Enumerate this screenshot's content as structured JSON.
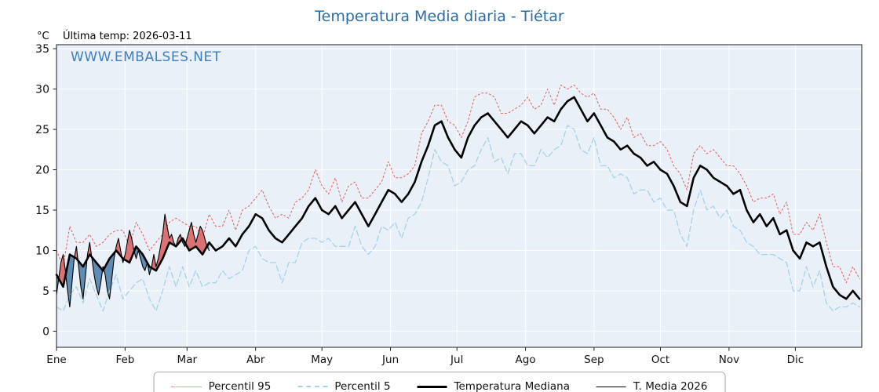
{
  "title": "Temperatura Media diaria - Tiétar",
  "y_axis_unit": "°C",
  "last_temp_label": "Última temp: 2026-03-11",
  "watermark": "WWW.EMBALSES.NET",
  "colors": {
    "title": "#2c6ca6",
    "watermark": "#3f7dc0",
    "p95": "#e05c5c",
    "p5": "#a6d1e6",
    "median": "#000000",
    "t2026": "#000000",
    "fill_above": "#d96464",
    "fill_below": "#4f81ab",
    "plot_bg": "#eaf0f8",
    "grid": "#ffffff",
    "frame": "#1a1a1a",
    "tick_label": "#111111"
  },
  "chart_data": {
    "type": "line",
    "title": "Temperatura Media diaria - Tiétar",
    "xlabel": "",
    "ylabel": "°C",
    "x_unit": "day_of_year",
    "xlim": [
      1,
      365
    ],
    "ylim": [
      -2,
      35.5
    ],
    "grid": true,
    "legend_position": "bottom",
    "y_ticks": [
      0,
      5,
      10,
      15,
      20,
      25,
      30,
      35
    ],
    "month_labels": [
      "Ene",
      "Feb",
      "Mar",
      "Abr",
      "May",
      "Jun",
      "Jul",
      "Ago",
      "Sep",
      "Oct",
      "Nov",
      "Dic"
    ],
    "month_start_days": [
      1,
      32,
      60,
      91,
      121,
      152,
      182,
      213,
      244,
      274,
      305,
      335
    ],
    "climatology_x": [
      1,
      4,
      7,
      10,
      13,
      16,
      19,
      22,
      25,
      28,
      31,
      34,
      37,
      40,
      43,
      46,
      49,
      52,
      55,
      58,
      61,
      64,
      67,
      70,
      73,
      76,
      79,
      82,
      85,
      88,
      91,
      94,
      97,
      100,
      103,
      106,
      109,
      112,
      115,
      118,
      121,
      124,
      127,
      130,
      133,
      136,
      139,
      142,
      145,
      148,
      151,
      154,
      157,
      160,
      163,
      166,
      169,
      172,
      175,
      178,
      181,
      184,
      187,
      190,
      193,
      196,
      199,
      202,
      205,
      208,
      211,
      214,
      217,
      220,
      223,
      226,
      229,
      232,
      235,
      238,
      241,
      244,
      247,
      250,
      253,
      256,
      259,
      262,
      265,
      268,
      271,
      274,
      277,
      280,
      283,
      286,
      289,
      292,
      295,
      298,
      301,
      304,
      307,
      310,
      313,
      316,
      319,
      322,
      325,
      328,
      331,
      334,
      337,
      340,
      343,
      346,
      349,
      352,
      355,
      358,
      361,
      364
    ],
    "series": [
      {
        "name": "Percentil 95",
        "style": "dotted",
        "color": "#e05c5c",
        "values": [
          10,
          8,
          13,
          11,
          11,
          12,
          10.5,
          11,
          12,
          12.5,
          12.5,
          10.5,
          13.5,
          12,
          10,
          11,
          12,
          13.5,
          14,
          13.5,
          13,
          13,
          11.5,
          14.5,
          13,
          13,
          15,
          12.5,
          15,
          15.5,
          16.5,
          17.5,
          15.5,
          14,
          14.5,
          14,
          16,
          16.5,
          17.5,
          20,
          18,
          17,
          19,
          16,
          18,
          18.5,
          16.5,
          16.5,
          17.5,
          18.5,
          21,
          19,
          19,
          19.5,
          20.5,
          24.5,
          26,
          28,
          28,
          26,
          25.5,
          24,
          26,
          29,
          29.5,
          29.5,
          29,
          27,
          27,
          27.5,
          28,
          29,
          27.5,
          28,
          30,
          28,
          30.5,
          30,
          30.5,
          29.5,
          29,
          29.5,
          27.5,
          27.5,
          26.5,
          25,
          26.5,
          24,
          24.5,
          23,
          23,
          23.5,
          22.5,
          20.5,
          19.5,
          17.5,
          22,
          23,
          22,
          22.5,
          21.5,
          20.5,
          20.5,
          19.5,
          18,
          16,
          16.5,
          16.5,
          17,
          14.5,
          16,
          12,
          12,
          13.5,
          12.5,
          14.5,
          11,
          8,
          8,
          6,
          8,
          6.5
        ]
      },
      {
        "name": "Percentil 5",
        "style": "dashed",
        "color": "#a6d1e6",
        "values": [
          3,
          2.5,
          4.5,
          5.5,
          3.5,
          6.5,
          4.5,
          2.5,
          5,
          7,
          4,
          5,
          6,
          6.5,
          4,
          2.5,
          5,
          8,
          5.5,
          8,
          5.5,
          7.5,
          5.5,
          6,
          6,
          7.5,
          6.5,
          7,
          7.5,
          10,
          10.5,
          9,
          8.5,
          8.5,
          6,
          8.5,
          8.5,
          11,
          11.5,
          11.5,
          11,
          11.5,
          10.5,
          10.5,
          10.5,
          13,
          10.5,
          9.5,
          10.5,
          13,
          12.5,
          13.5,
          11.5,
          14,
          14.5,
          16,
          19,
          22.5,
          21,
          20.5,
          18,
          18.5,
          20,
          20.5,
          22.5,
          24,
          21,
          21.5,
          19.5,
          22,
          22,
          20.5,
          20.5,
          22.5,
          21.5,
          22.5,
          23,
          25.5,
          25,
          22.5,
          22,
          24,
          20.5,
          20.5,
          19,
          19.5,
          19,
          17,
          17.5,
          17.5,
          16,
          16.5,
          15,
          15,
          12,
          10.5,
          15,
          17.5,
          15,
          15.5,
          14,
          15,
          13,
          12.5,
          11,
          10.5,
          9.5,
          9.5,
          9.5,
          9,
          8.5,
          5,
          5,
          8,
          5.5,
          7.5,
          3.5,
          2.5,
          3,
          3,
          3.5,
          3
        ]
      },
      {
        "name": "Temperatura Mediana",
        "style": "solid-thick",
        "color": "#000000",
        "values": [
          7,
          5.5,
          9.5,
          9,
          8,
          9.5,
          8.5,
          7.5,
          9,
          10,
          9,
          8.5,
          10.5,
          9.5,
          8,
          7.5,
          9,
          11,
          10.5,
          11.5,
          10,
          10.5,
          9.5,
          11,
          10,
          10.5,
          11.5,
          10.5,
          12,
          13,
          14.5,
          14,
          12.5,
          11.5,
          11,
          12,
          13,
          14,
          15.5,
          16.5,
          15,
          14.5,
          15.5,
          14,
          15,
          16,
          14.5,
          13,
          14.5,
          16,
          17.5,
          17,
          16,
          17,
          18.5,
          21,
          23,
          25.5,
          26,
          24,
          22.5,
          21.5,
          24,
          25.5,
          26.5,
          27,
          26,
          25,
          24,
          25,
          26,
          25.5,
          24.5,
          25.5,
          26.5,
          26,
          27.5,
          28.5,
          29,
          27.5,
          26,
          27,
          25.5,
          24,
          23.5,
          22.5,
          23,
          22,
          21.5,
          20.5,
          21,
          20,
          19.5,
          18,
          16,
          15.5,
          19,
          20.5,
          20,
          19,
          18.5,
          18,
          17,
          17.5,
          15,
          13.5,
          14.5,
          13,
          14,
          12,
          12.5,
          10,
          9,
          11,
          10.5,
          11,
          8,
          5.5,
          4.5,
          4,
          5,
          4
        ]
      },
      {
        "name": "T. Media 2026",
        "style": "solid-thin",
        "color": "#000000",
        "x": [
          1,
          2,
          3,
          4,
          5,
          6,
          7,
          8,
          9,
          10,
          11,
          12,
          13,
          14,
          15,
          16,
          17,
          18,
          19,
          20,
          21,
          22,
          23,
          24,
          25,
          26,
          27,
          28,
          29,
          30,
          31,
          32,
          33,
          34,
          35,
          36,
          37,
          38,
          39,
          40,
          41,
          42,
          43,
          44,
          45,
          46,
          47,
          48,
          49,
          50,
          51,
          52,
          53,
          54,
          55,
          56,
          57,
          58,
          59,
          60,
          61,
          62,
          63,
          64,
          65,
          66,
          67,
          68,
          69,
          70
        ],
        "values": [
          4.5,
          6.5,
          8.5,
          9.5,
          7.5,
          5,
          3,
          6,
          9,
          10.5,
          8,
          5.5,
          4,
          6.5,
          9.5,
          11,
          9,
          7,
          5.5,
          4.5,
          6,
          8,
          7,
          5,
          4,
          6.5,
          9,
          10.5,
          11.5,
          10,
          8.5,
          9.5,
          11,
          12.5,
          11.5,
          10,
          9,
          10,
          9,
          8,
          7.5,
          8.5,
          7,
          8,
          9.5,
          8,
          9,
          10.5,
          12,
          14.5,
          13,
          11.5,
          12,
          11,
          10.5,
          11.5,
          12,
          11,
          10.5,
          11.5,
          12.5,
          13.5,
          12,
          11,
          12,
          13,
          12.5,
          11.5,
          10.5,
          10
        ]
      }
    ]
  },
  "legend": {
    "items": [
      "Percentil 95",
      "Percentil 5",
      "Temperatura Mediana",
      "T. Media 2026"
    ]
  }
}
